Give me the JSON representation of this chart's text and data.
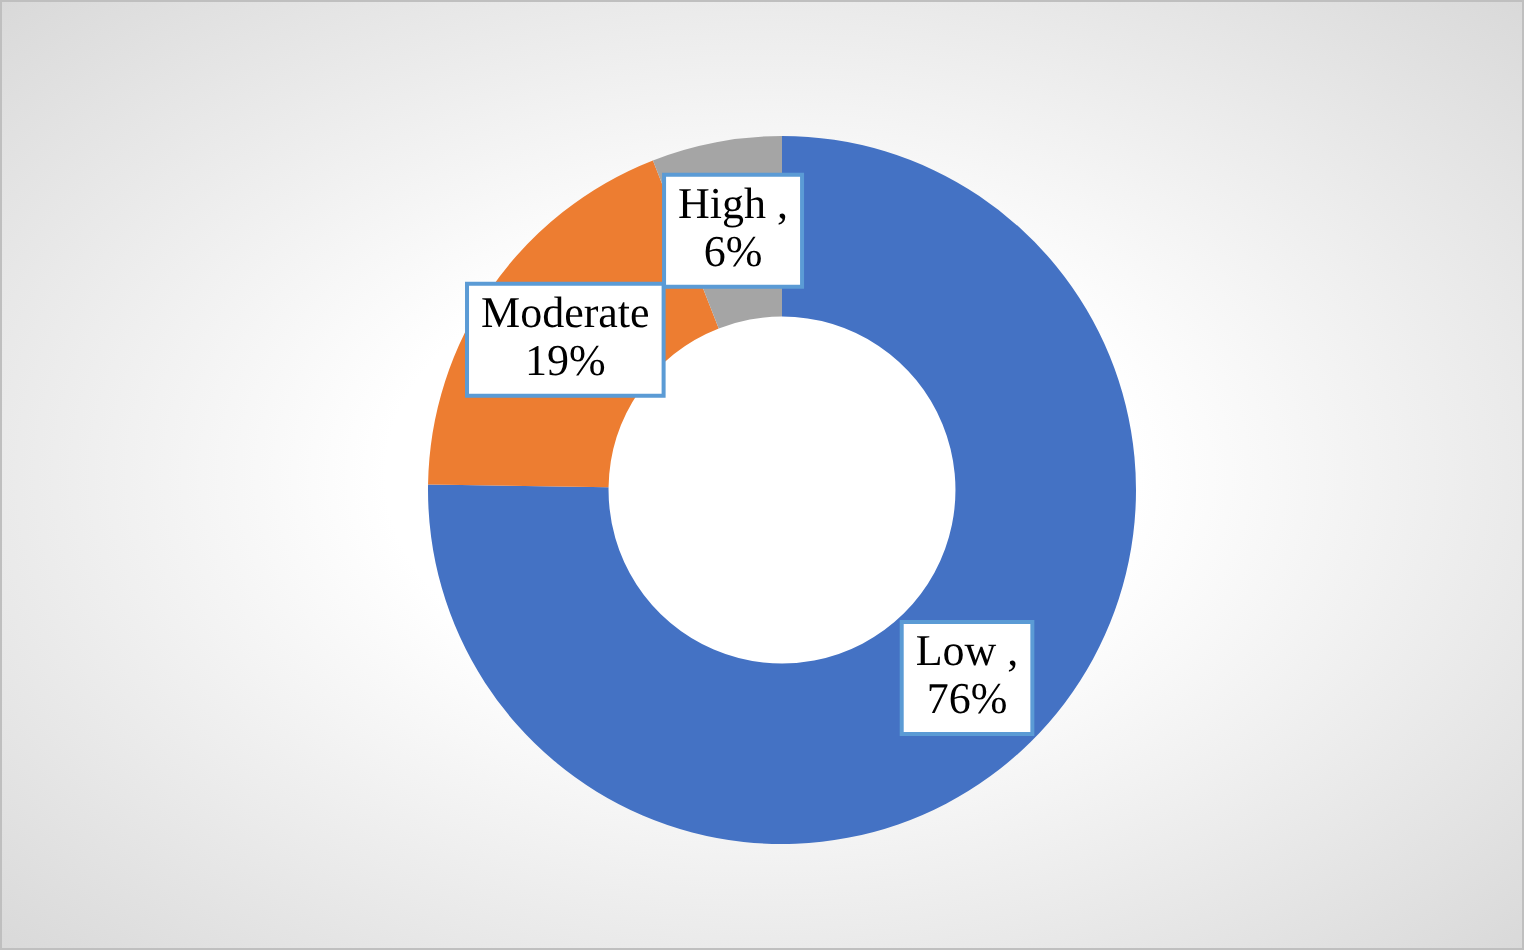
{
  "chart_data": {
    "type": "donut",
    "categories": [
      "Low",
      "Moderate",
      "High"
    ],
    "values": [
      76,
      19,
      6
    ],
    "colors": [
      "#4472c4",
      "#ed7d31",
      "#a5a5a5"
    ],
    "value_labels": [
      ", 76%",
      "19%",
      ", 6%"
    ],
    "legend": false
  }
}
